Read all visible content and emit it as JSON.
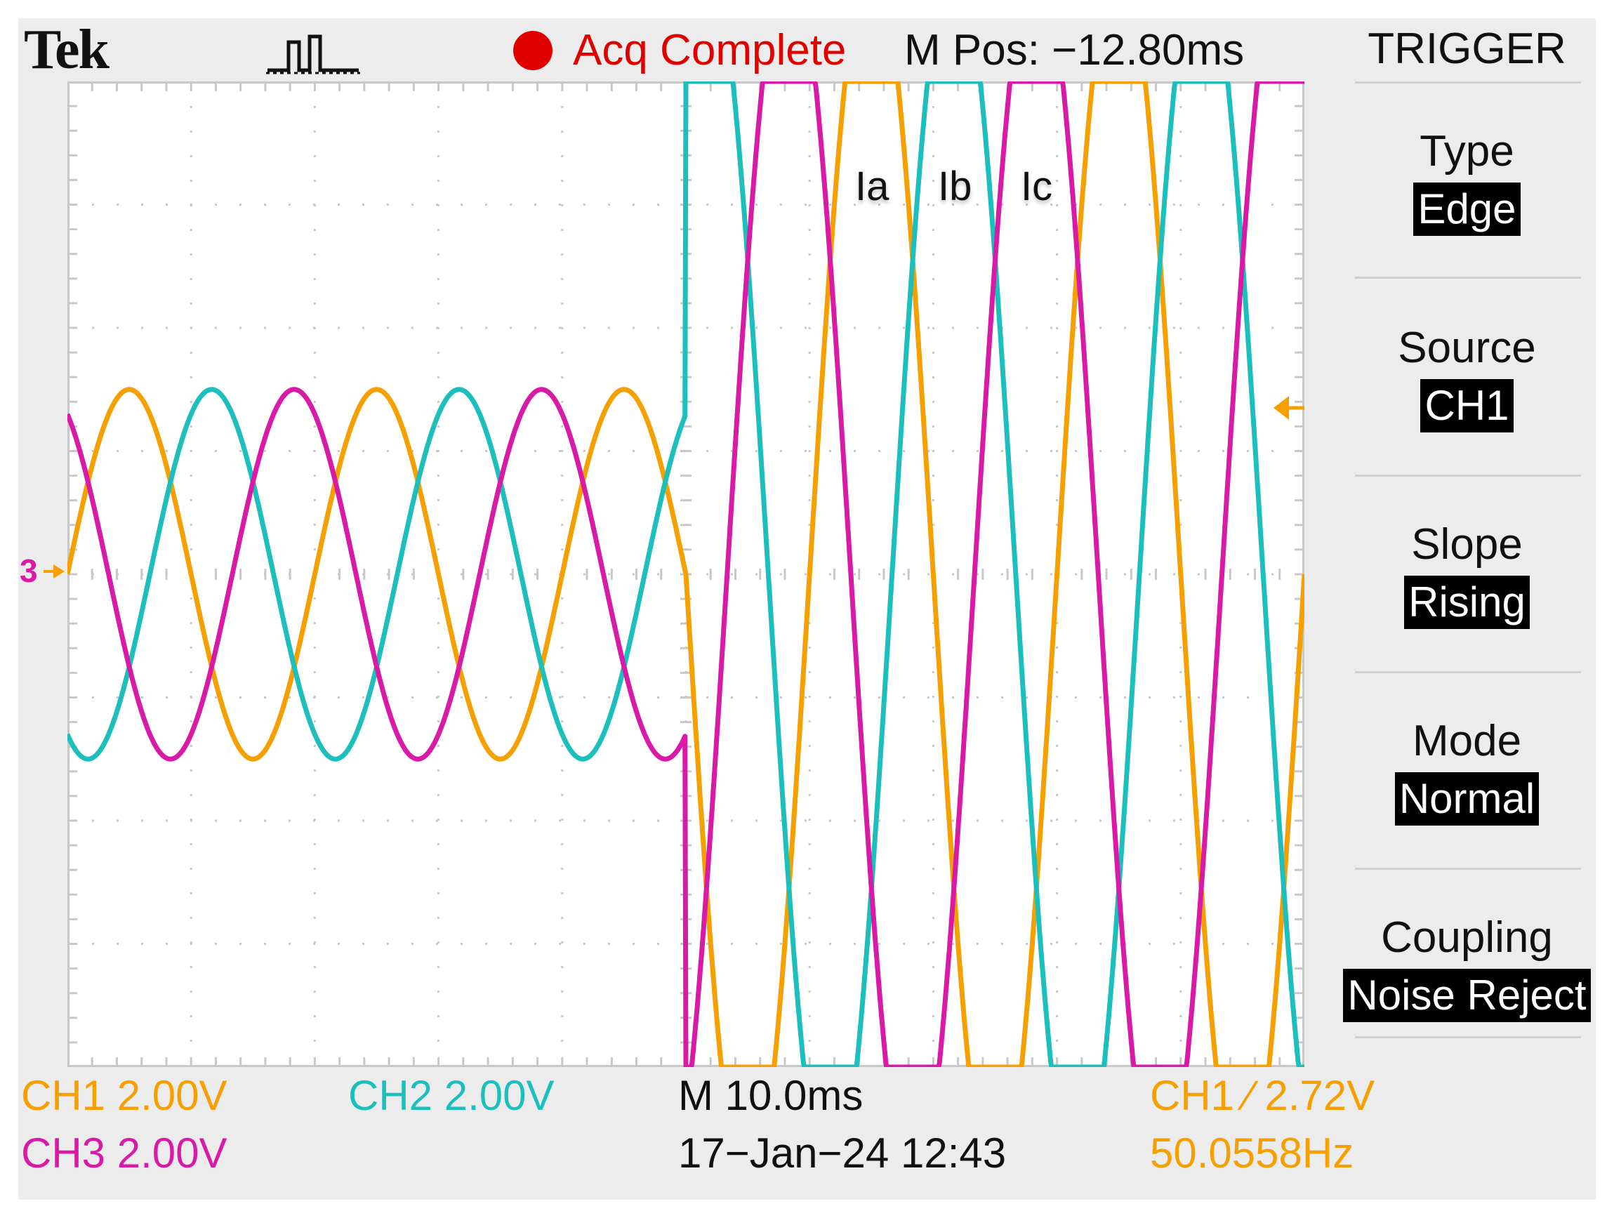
{
  "header": {
    "brand": "Tek",
    "status": "Acq Complete",
    "status_color": "#e00000",
    "m_pos": "M Pos: −12.80ms",
    "acq_mode_icon": "acquire-waveform-icon"
  },
  "trace_labels": [
    "Ia",
    "Ib",
    "Ic"
  ],
  "ground_marker": "3",
  "trigger_menu": {
    "title": "TRIGGER",
    "items": [
      {
        "label": "Type",
        "value": "Edge"
      },
      {
        "label": "Source",
        "value": "CH1"
      },
      {
        "label": "Slope",
        "value": "Rising"
      },
      {
        "label": "Mode",
        "value": "Normal"
      },
      {
        "label": "Coupling",
        "value": "Noise Reject"
      }
    ]
  },
  "readouts": {
    "ch1": "CH1   2.00V",
    "ch2": "CH2   2.00V",
    "ch3": "CH3   2.00V",
    "timebase": "M 10.0ms",
    "trigger_level": "CH1 ∕ 2.72V",
    "date": "17−Jan−24 12:43",
    "frequency": "50.0558Hz"
  },
  "colors": {
    "ch1": "#f5a000",
    "ch2": "#1cbfbc",
    "ch3": "#d91aa6",
    "graticule": "#c8c8c8",
    "screen_bg": "#ffffff"
  },
  "chart_data": {
    "type": "line",
    "x_unit": "divisions",
    "y_unit": "divisions",
    "xlim": [
      0,
      10
    ],
    "ylim": [
      -4,
      4
    ],
    "grid": true,
    "step_at_div": 5,
    "series": [
      {
        "name": "Ia",
        "channel": "CH1",
        "color": "#f5a000",
        "amp_before": 1.5,
        "amp_after": 5.1,
        "phase_deg": 0
      },
      {
        "name": "Ib",
        "channel": "CH2",
        "color": "#1cbfbc",
        "amp_before": 1.5,
        "amp_after": 5.1,
        "phase_deg": -120
      },
      {
        "name": "Ic",
        "channel": "CH3",
        "color": "#d91aa6",
        "amp_before": 1.5,
        "amp_after": 5.1,
        "phase_deg": 120
      }
    ],
    "cycles_per_division": 0.5
  }
}
